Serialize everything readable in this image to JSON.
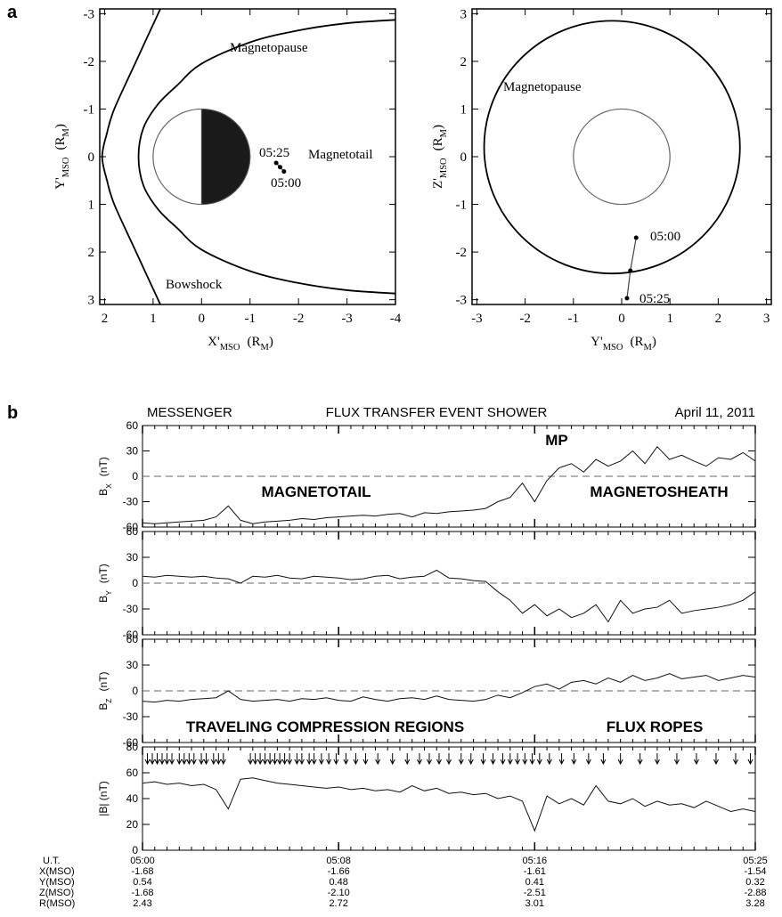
{
  "chart_data": [
    {
      "type": "orbit",
      "panel_label": "a",
      "xlabel": [
        "X'",
        "MSO",
        "(R",
        "M",
        ")"
      ],
      "ylabel": [
        "Y'",
        "MSO",
        "(R",
        "M",
        ")"
      ],
      "xlim": [
        2.1,
        -4
      ],
      "ylim": [
        3.1,
        -3.1
      ],
      "xticks": [
        2,
        1,
        0,
        -1,
        -2,
        -3,
        -4
      ],
      "yticks": [
        -3,
        -2,
        -1,
        0,
        1,
        2,
        3
      ],
      "planet": {
        "center": [
          0,
          0
        ],
        "radius": 1,
        "nightside": true
      },
      "curves": [
        {
          "name": "Magnetopause",
          "x": [
            -4,
            -3,
            -2,
            -1,
            0,
            0.5,
            0.9,
            1.2,
            1.3,
            1.2,
            0.9,
            0.5,
            0,
            -1,
            -2,
            -3,
            -4
          ],
          "y": [
            -2.87,
            -2.8,
            -2.65,
            -2.4,
            -1.95,
            -1.5,
            -1.1,
            -0.6,
            0,
            0.6,
            1.1,
            1.5,
            1.95,
            2.4,
            2.65,
            2.8,
            2.87
          ]
        },
        {
          "name": "Bowshock",
          "x": [
            0.85,
            1.35,
            1.8,
            1.95,
            2.05,
            1.95,
            1.8,
            1.35,
            0.85
          ],
          "y": [
            -3.1,
            -2,
            -1,
            -0.5,
            0,
            0.5,
            1,
            2,
            3.1
          ]
        }
      ],
      "trajectory": {
        "x": [
          -1.7,
          -1.62,
          -1.54
        ],
        "y": [
          0.31,
          0.22,
          0.13
        ],
        "start_label": "05:00",
        "end_label": "05:25"
      },
      "annotations": [
        "Magnetotail"
      ]
    },
    {
      "type": "orbit",
      "xlabel": [
        "Y'",
        "MSO",
        "(R",
        "M",
        ")"
      ],
      "ylabel": [
        "Z'",
        "MSO",
        "(R",
        "M",
        ")"
      ],
      "xlim": [
        -3.1,
        3.1
      ],
      "ylim": [
        -3.1,
        3.1
      ],
      "xticks": [
        -3,
        -2,
        -1,
        0,
        1,
        2,
        3
      ],
      "yticks": [
        -3,
        -2,
        -1,
        0,
        1,
        2,
        3
      ],
      "planet": {
        "center": [
          0,
          0
        ],
        "radius": 1
      },
      "curves": [
        {
          "name": "Magnetopause",
          "center": [
            -0.2,
            0.2
          ],
          "radius": 2.65
        }
      ],
      "trajectory": {
        "x": [
          0.3,
          0.18,
          0.11
        ],
        "y": [
          -1.7,
          -2.39,
          -2.97
        ],
        "start_label": "05:00",
        "end_label": "05:25"
      },
      "annotations": []
    },
    {
      "type": "timeseries",
      "panel_label": "b",
      "title_left": "MESSENGER",
      "title": "FLUX TRANSFER EVENT SHOWER",
      "title_right": "April 11, 2011",
      "x": [
        0,
        0.5,
        1,
        1.5,
        2,
        2.5,
        3,
        3.5,
        4,
        4.5,
        5,
        5.5,
        6,
        6.5,
        7,
        7.5,
        8,
        8.5,
        9,
        9.5,
        10,
        10.5,
        11,
        11.5,
        12,
        12.5,
        13,
        13.5,
        14,
        14.5,
        15,
        15.5,
        16,
        16.5,
        17,
        17.5,
        18,
        18.5,
        19,
        19.5,
        20,
        20.5,
        21,
        21.5,
        22,
        22.5,
        23,
        23.5,
        24,
        24.5,
        25
      ],
      "xlim": [
        0,
        25
      ],
      "xticks": [
        {
          "value": 0,
          "label": "05:00"
        },
        {
          "value": 8,
          "label": "05:08"
        },
        {
          "value": 16,
          "label": "05:16"
        },
        {
          "value": 25,
          "label": "05:25"
        }
      ],
      "panels": [
        {
          "ylabel": [
            "B",
            "X",
            "(nT)"
          ],
          "ylim": [
            -60,
            60
          ],
          "yticks": [
            -60,
            -30,
            0,
            30,
            60
          ],
          "reference_line": 0,
          "values": [
            -55,
            -56,
            -55,
            -54,
            -53,
            -52,
            -48,
            -35,
            -52,
            -56,
            -54,
            -53,
            -52,
            -50,
            -51,
            -49,
            -48,
            -47,
            -46,
            -47,
            -45,
            -44,
            -48,
            -43,
            -44,
            -42,
            -41,
            -40,
            -38,
            -30,
            -25,
            -8,
            -30,
            -5,
            10,
            15,
            5,
            20,
            12,
            18,
            30,
            15,
            35,
            20,
            25,
            18,
            12,
            22,
            20,
            28,
            18
          ],
          "annotations": [
            "MP",
            "MAGNETOTAIL",
            "MAGNETOSHEATH"
          ]
        },
        {
          "ylabel": [
            "B",
            "Y",
            "(nT)"
          ],
          "ylim": [
            -60,
            60
          ],
          "yticks": [
            -60,
            -30,
            0,
            30,
            60
          ],
          "reference_line": 0,
          "values": [
            8,
            7,
            9,
            8,
            7,
            8,
            6,
            5,
            0,
            8,
            7,
            9,
            6,
            5,
            8,
            7,
            6,
            4,
            5,
            8,
            9,
            5,
            7,
            8,
            15,
            6,
            5,
            3,
            2,
            -10,
            -20,
            -35,
            -25,
            -38,
            -30,
            -40,
            -35,
            -25,
            -45,
            -20,
            -35,
            -30,
            -28,
            -20,
            -35,
            -32,
            -30,
            -28,
            -25,
            -20,
            -10
          ],
          "annotations": []
        },
        {
          "ylabel": [
            "B",
            "Z",
            "(nT)"
          ],
          "ylim": [
            -60,
            60
          ],
          "yticks": [
            -60,
            -30,
            0,
            30,
            60
          ],
          "reference_line": 0,
          "values": [
            -12,
            -13,
            -11,
            -12,
            -10,
            -9,
            -8,
            0,
            -10,
            -12,
            -11,
            -10,
            -12,
            -9,
            -10,
            -8,
            -11,
            -12,
            -7,
            -10,
            -12,
            -9,
            -8,
            -10,
            -6,
            -10,
            -11,
            -12,
            -10,
            -5,
            -8,
            -2,
            5,
            8,
            2,
            10,
            12,
            8,
            15,
            10,
            18,
            12,
            15,
            20,
            14,
            16,
            18,
            12,
            15,
            18,
            16
          ],
          "annotations": [
            "TRAVELING COMPRESSION REGIONS",
            "FLUX ROPES"
          ]
        },
        {
          "ylabel": [
            "|B| (nT)"
          ],
          "ylim": [
            0,
            80
          ],
          "yticks": [
            0,
            20,
            40,
            60,
            80
          ],
          "values": [
            52,
            53,
            51,
            52,
            50,
            51,
            47,
            32,
            55,
            56,
            54,
            52,
            51,
            50,
            49,
            48,
            49,
            47,
            48,
            46,
            47,
            45,
            50,
            46,
            48,
            44,
            45,
            43,
            44,
            40,
            42,
            38,
            15,
            42,
            36,
            40,
            35,
            50,
            38,
            36,
            40,
            34,
            38,
            35,
            36,
            33,
            38,
            34,
            30,
            32,
            30
          ],
          "annotations": [],
          "events": [
            0.2,
            0.4,
            0.6,
            0.8,
            1.0,
            1.2,
            1.5,
            1.7,
            1.9,
            2.1,
            2.4,
            2.6,
            2.9,
            3.1,
            3.3,
            4.4,
            4.6,
            4.8,
            5.0,
            5.2,
            5.4,
            5.6,
            5.8,
            6.0,
            6.3,
            6.5,
            6.8,
            7.0,
            7.3,
            7.6,
            7.9,
            8.3,
            8.7,
            9.1,
            9.6,
            10.2,
            10.8,
            11.3,
            11.7,
            12.1,
            12.5,
            13.0,
            13.4,
            13.9,
            14.3,
            14.7,
            15.0,
            15.3,
            15.6,
            15.9,
            16.2,
            16.6,
            17.1,
            17.6,
            18.2,
            18.8,
            19.5,
            20.3,
            21.0,
            21.8,
            22.6,
            23.4,
            24.2,
            24.8
          ]
        }
      ],
      "ephemeris": {
        "time_label": "U.T.",
        "rows": [
          {
            "label": "X(MSO)",
            "values": [
              "-1.68",
              "-1.66",
              "-1.61",
              "-1.54"
            ]
          },
          {
            "label": "Y(MSO)",
            "values": [
              "0.54",
              "0.48",
              "0.41",
              "0.32"
            ]
          },
          {
            "label": "Z(MSO)",
            "values": [
              "-1.68",
              "-2.10",
              "-2.51",
              "-2.88"
            ]
          },
          {
            "label": "R(MSO)",
            "values": [
              "2.43",
              "2.72",
              "3.01",
              "3.28"
            ]
          }
        ]
      }
    }
  ]
}
